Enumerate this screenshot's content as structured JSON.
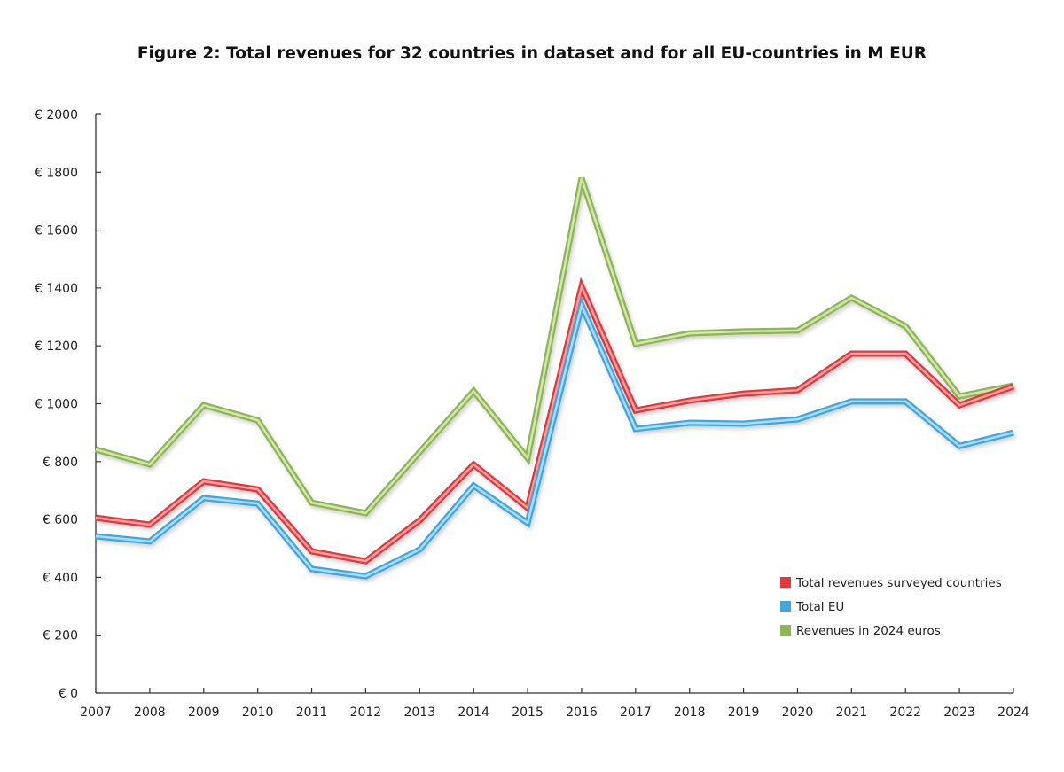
{
  "chart_data": {
    "type": "line",
    "title": "Figure 2: Total revenues for 32 countries in dataset and for all EU-countries in M EUR",
    "xlabel": "",
    "ylabel": "",
    "x": [
      "2007",
      "2008",
      "2009",
      "2010",
      "2011",
      "2012",
      "2013",
      "2014",
      "2015",
      "2016",
      "2017",
      "2018",
      "2019",
      "2020",
      "2021",
      "2022",
      "2023",
      "2024"
    ],
    "ylim": [
      0,
      2000
    ],
    "yticks": [
      0,
      200,
      400,
      600,
      800,
      1000,
      1200,
      1400,
      1600,
      1800,
      2000
    ],
    "ytick_labels": [
      "€ 0",
      "€ 200",
      "€ 400",
      "€ 600",
      "€ 800",
      "€ 1000",
      "€ 1200",
      "€ 1400",
      "€ 1600",
      "€ 1800",
      "€ 2000"
    ],
    "grid": false,
    "legend_position": "bottom-right",
    "series": [
      {
        "name": "Total revenues surveyed countries",
        "color": "#e0393e",
        "values": [
          606,
          582,
          732,
          704,
          490,
          456,
          597,
          790,
          640,
          1405,
          977,
          1011,
          1035,
          1047,
          1173,
          1173,
          995,
          1060
        ]
      },
      {
        "name": "Total EU",
        "color": "#41a6de",
        "values": [
          542,
          524,
          674,
          655,
          429,
          404,
          496,
          717,
          588,
          1340,
          913,
          934,
          931,
          946,
          1008,
          1008,
          854,
          900
        ]
      },
      {
        "name": "Revenues in 2024 euros",
        "color": "#8db552",
        "values": [
          842,
          790,
          995,
          943,
          658,
          622,
          833,
          1044,
          812,
          1780,
          1207,
          1243,
          1250,
          1253,
          1366,
          1268,
          1026,
          1063
        ]
      }
    ]
  }
}
